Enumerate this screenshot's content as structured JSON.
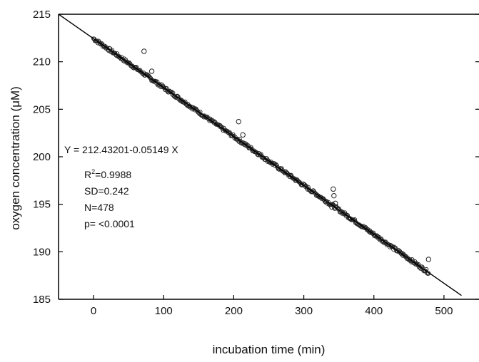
{
  "chart_data": {
    "type": "scatter",
    "xlabel": "incubation time (min)",
    "ylabel": "oxygen concentration (μM)",
    "xlim": [
      -50,
      550
    ],
    "ylim": [
      185,
      215
    ],
    "xticks": [
      0,
      100,
      200,
      300,
      400,
      500
    ],
    "yticks": [
      185,
      190,
      195,
      200,
      205,
      210,
      215
    ],
    "grid": false,
    "fit": {
      "equation_text": "Y = 212.43201-0.05149 X",
      "intercept": 212.43201,
      "slope": -0.05149,
      "x_range": [
        -50,
        525
      ],
      "stats": [
        {
          "label": "R",
          "sup": "2",
          "rest": "=0.9988"
        },
        {
          "label": "SD=0.242",
          "sup": "",
          "rest": ""
        },
        {
          "label": "N=478",
          "sup": "",
          "rest": ""
        },
        {
          "label": "p= <0.0001",
          "sup": "",
          "rest": ""
        }
      ]
    },
    "series": [
      {
        "marker": "open-circle",
        "n_points": 478,
        "x_range": [
          0,
          478
        ],
        "outliers": [
          {
            "x": 72,
            "y": 211.1
          },
          {
            "x": 83,
            "y": 209.0
          },
          {
            "x": 207,
            "y": 203.7
          },
          {
            "x": 213,
            "y": 202.3
          },
          {
            "x": 342,
            "y": 196.6
          },
          {
            "x": 343,
            "y": 195.9
          },
          {
            "x": 345,
            "y": 195.1
          },
          {
            "x": 340,
            "y": 194.7
          },
          {
            "x": 478,
            "y": 189.2
          }
        ]
      }
    ]
  }
}
